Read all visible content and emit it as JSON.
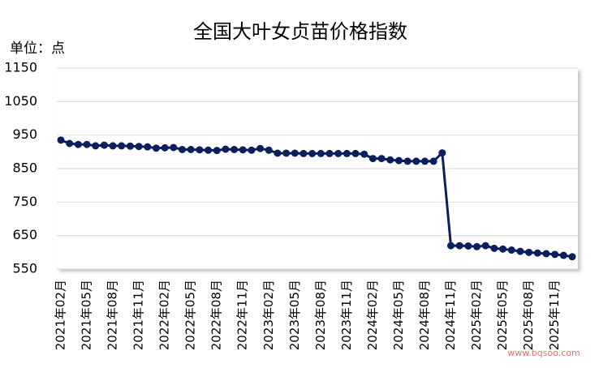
{
  "chart_data": {
    "type": "line",
    "title": "全国大叶女贞苗价格指数",
    "unit_label": "单位：点",
    "watermark": "www.bqsoo.com",
    "categories": [
      "2021年02月",
      null,
      null,
      "2021年05月",
      null,
      null,
      "2021年08月",
      null,
      null,
      "2021年11月",
      null,
      null,
      "2022年02月",
      null,
      null,
      "2022年05月",
      null,
      null,
      "2022年08月",
      null,
      null,
      "2022年11月",
      null,
      null,
      "2023年02月",
      null,
      null,
      "2023年05月",
      null,
      null,
      "2023年08月",
      null,
      null,
      "2023年11月",
      null,
      null,
      "2024年02月",
      null,
      null,
      "2024年05月",
      null,
      null,
      "2024年08月",
      null,
      null,
      "2024年11月",
      null,
      null,
      "2025年02月",
      null,
      null,
      "2025年05月",
      null,
      null,
      "2025年08月",
      null,
      null,
      "2025年11月",
      null,
      null
    ],
    "series": [
      {
        "name": "价格指数",
        "color": "#0b1f5e",
        "values": [
          935,
          925,
          922,
          922,
          918,
          920,
          918,
          918,
          917,
          916,
          915,
          911,
          912,
          913,
          907,
          907,
          906,
          905,
          904,
          908,
          907,
          906,
          905,
          910,
          905,
          896,
          896,
          896,
          895,
          895,
          895,
          895,
          895,
          895,
          895,
          893,
          880,
          880,
          876,
          874,
          872,
          872,
          872,
          872,
          897,
          620,
          620,
          619,
          617,
          620,
          612,
          610,
          607,
          603,
          600,
          598,
          596,
          594,
          591,
          587
        ]
      }
    ],
    "ylim": [
      550,
      1150
    ],
    "yticks": [
      550,
      650,
      750,
      850,
      950,
      1050,
      1150
    ],
    "grid": true
  }
}
